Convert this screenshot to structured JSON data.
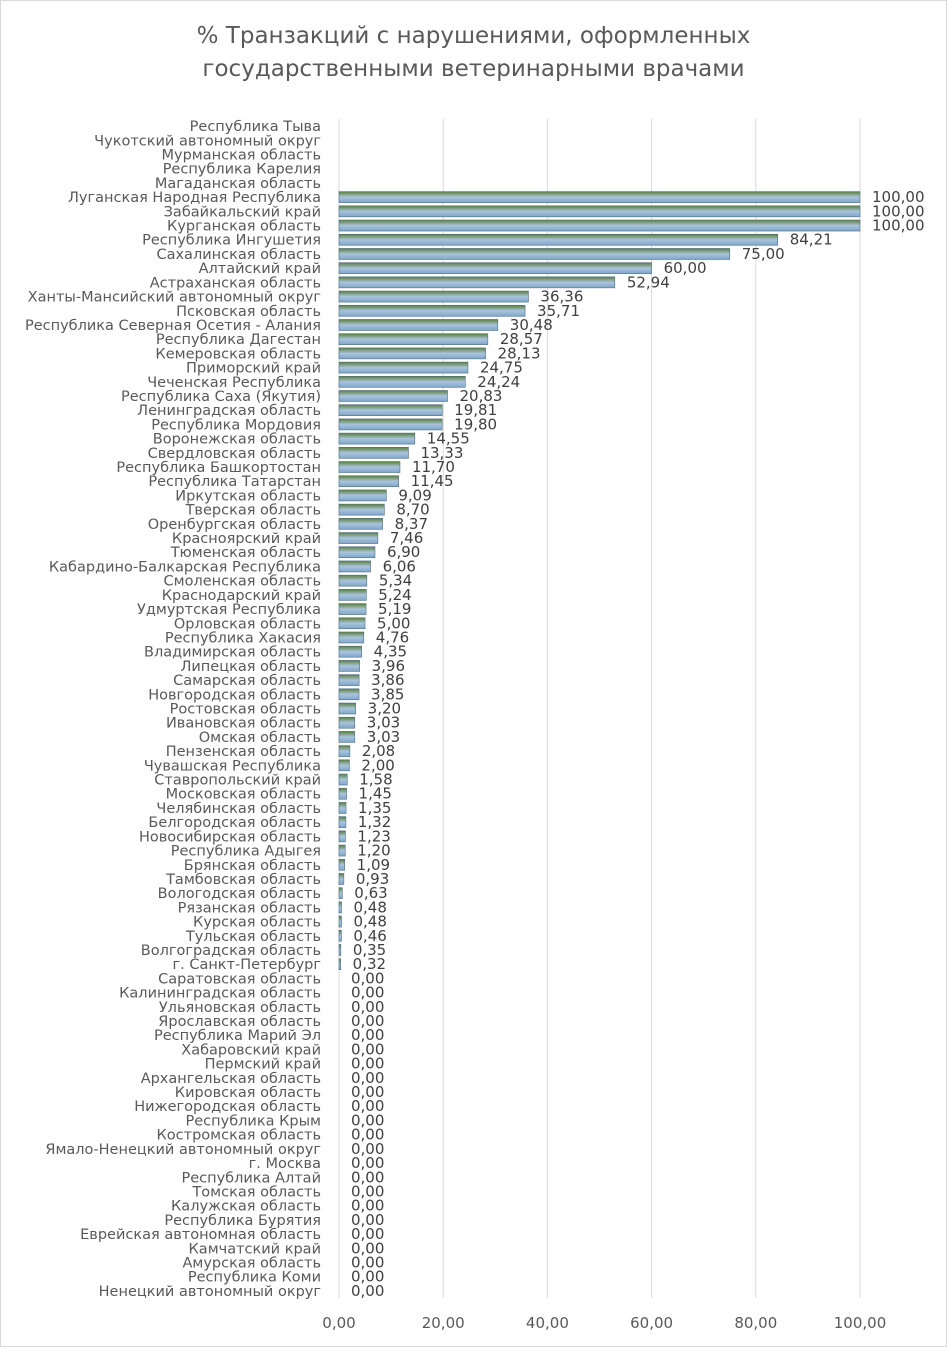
{
  "chart_data": {
    "type": "bar",
    "orientation": "horizontal",
    "title": [
      "% Транзакций с нарушениями, оформленных",
      "государственными ветеринарными врачами"
    ],
    "xlabel": "",
    "ylabel": "",
    "xlim": [
      0,
      100
    ],
    "x_ticks": [
      "0,00",
      "20,00",
      "40,00",
      "60,00",
      "80,00",
      "100,00"
    ],
    "grid": true,
    "legend": "none",
    "bar_color_top": "#5b7f3a",
    "bar_color_bottom": "#7fa6c9",
    "axis_color": "#d9d9d9",
    "text_color": "#595959",
    "categories": [
      "Республика Тыва",
      "Чукотский автономный округ",
      "Мурманская область",
      "Республика Карелия",
      "Магаданская область",
      "Луганская Народная Республика",
      "Забайкальский край",
      "Курганская область",
      "Республика Ингушетия",
      "Сахалинская область",
      "Алтайский край",
      "Астраханская область",
      "Ханты-Мансийский автономный округ",
      "Псковская область",
      "Республика Северная Осетия - Алания",
      "Республика Дагестан",
      "Кемеровская область",
      "Приморский край",
      "Чеченская Республика",
      "Республика Саха (Якутия)",
      "Ленинградская область",
      "Республика Мордовия",
      "Воронежская область",
      "Свердловская область",
      "Республика Башкортостан",
      "Республика Татарстан",
      "Иркутская область",
      "Тверская область",
      "Оренбургская область",
      "Красноярский край",
      "Тюменская область",
      "Кабардино-Балкарская Республика",
      "Смоленская область",
      "Краснодарский край",
      "Удмуртская Республика",
      "Орловская область",
      "Республика Хакасия",
      "Владимирская область",
      "Липецкая область",
      "Самарская область",
      "Новгородская область",
      "Ростовская область",
      "Ивановская область",
      "Омская область",
      "Пензенская область",
      "Чувашская Республика",
      "Ставропольский край",
      "Московская область",
      "Челябинская область",
      "Белгородская область",
      "Новосибирская область",
      "Республика Адыгея",
      "Брянская область",
      "Тамбовская область",
      "Вологодская область",
      "Рязанская область",
      "Курская область",
      "Тульская область",
      "Волгоградская область",
      "г. Санкт-Петербург",
      "Саратовская область",
      "Калининградская область",
      "Ульяновская область",
      "Ярославская область",
      "Республика Марий Эл",
      "Хабаровский край",
      "Пермский край",
      "Архангельская область",
      "Кировская область",
      "Нижегородская область",
      "Республика Крым",
      "Костромская область",
      "Ямало-Ненецкий автономный округ",
      "г. Москва",
      "Республика Алтай",
      "Томская область",
      "Калужская область",
      "Республика Бурятия",
      "Еврейская автономная область",
      "Камчатский край",
      "Амурская область",
      "Республика Коми",
      "Ненецкий автономный округ"
    ],
    "values": [
      null,
      null,
      null,
      null,
      null,
      100,
      100,
      100,
      84.21,
      75,
      60,
      52.94,
      36.36,
      35.71,
      30.48,
      28.57,
      28.13,
      24.75,
      24.24,
      20.83,
      19.81,
      19.8,
      14.55,
      13.33,
      11.7,
      11.45,
      9.09,
      8.7,
      8.37,
      7.46,
      6.9,
      6.06,
      5.34,
      5.24,
      5.19,
      5.0,
      4.76,
      4.35,
      3.96,
      3.86,
      3.85,
      3.2,
      3.03,
      3.03,
      2.08,
      2.0,
      1.58,
      1.45,
      1.35,
      1.32,
      1.23,
      1.2,
      1.09,
      0.93,
      0.63,
      0.48,
      0.48,
      0.46,
      0.35,
      0.32,
      0,
      0,
      0,
      0,
      0,
      0,
      0,
      0,
      0,
      0,
      0,
      0,
      0,
      0,
      0,
      0,
      0,
      0,
      0,
      0,
      0,
      0,
      0
    ],
    "value_labels": [
      "",
      "",
      "",
      "",
      "",
      "100,00",
      "100,00",
      "100,00",
      "84,21",
      "75,00",
      "60,00",
      "52,94",
      "36,36",
      "35,71",
      "30,48",
      "28,57",
      "28,13",
      "24,75",
      "24,24",
      "20,83",
      "19,81",
      "19,80",
      "14,55",
      "13,33",
      "11,70",
      "11,45",
      "9,09",
      "8,70",
      "8,37",
      "7,46",
      "6,90",
      "6,06",
      "5,34",
      "5,24",
      "5,19",
      "5,00",
      "4,76",
      "4,35",
      "3,96",
      "3,86",
      "3,85",
      "3,20",
      "3,03",
      "3,03",
      "2,08",
      "2,00",
      "1,58",
      "1,45",
      "1,35",
      "1,32",
      "1,23",
      "1,20",
      "1,09",
      "0,93",
      "0,63",
      "0,48",
      "0,48",
      "0,46",
      "0,35",
      "0,32",
      "0,00",
      "0,00",
      "0,00",
      "0,00",
      "0,00",
      "0,00",
      "0,00",
      "0,00",
      "0,00",
      "0,00",
      "0,00",
      "0,00",
      "0,00",
      "0,00",
      "0,00",
      "0,00",
      "0,00",
      "0,00",
      "0,00",
      "0,00",
      "0,00",
      "0,00",
      "0,00"
    ]
  }
}
